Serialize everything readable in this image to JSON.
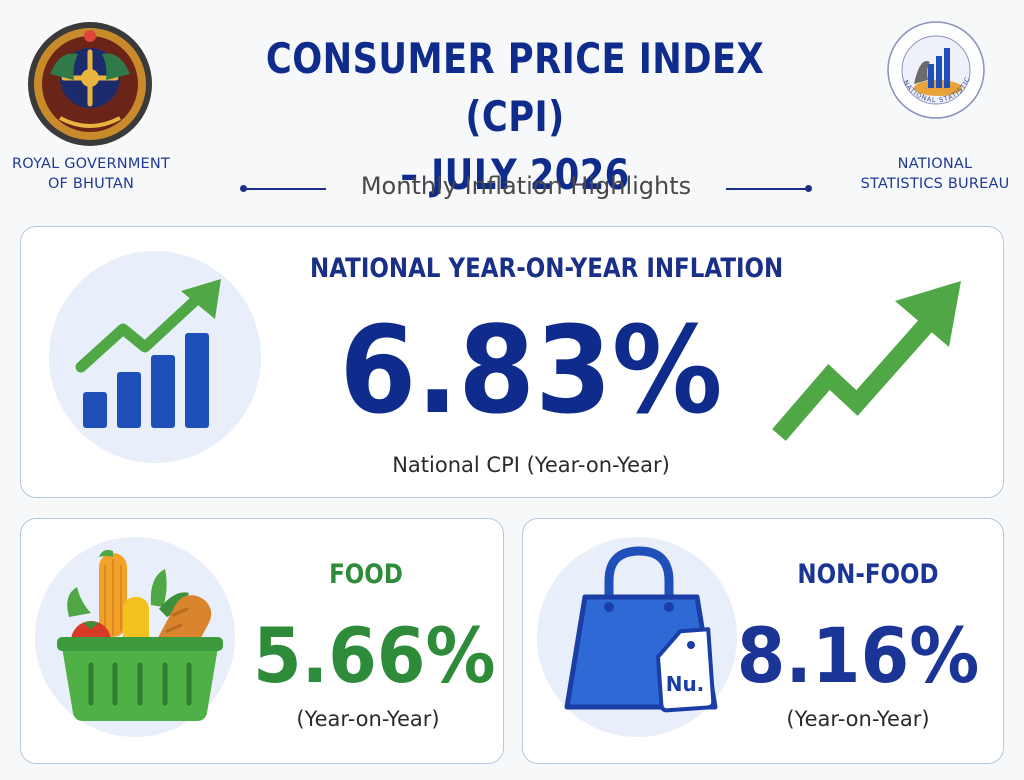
{
  "header": {
    "title_line1": "CONSUMER PRICE INDEX (CPI)",
    "title_line2": "– JULY 2026",
    "subtitle": "Monthly Inflation Highlights",
    "left_org_line1": "ROYAL GOVERNMENT",
    "left_org_line2": "OF BHUTAN",
    "right_org_line1": "NATIONAL",
    "right_org_line2": "STATISTICS BUREAU",
    "right_seal_text": "NATIONAL STATISTICS BUREAU",
    "left_emblem_icon": "royal-emblem-of-bhutan",
    "right_emblem_icon": "nsb-seal"
  },
  "national": {
    "heading": "NATIONAL YEAR-ON-YEAR INFLATION",
    "value": "6.83%",
    "caption": "National CPI (Year-on-Year)",
    "left_icon": "bar-chart-trend-up-icon",
    "right_icon": "trend-up-arrow-icon"
  },
  "food": {
    "heading": "FOOD",
    "value": "5.66%",
    "caption": "(Year-on-Year)",
    "icon": "grocery-basket-icon"
  },
  "non_food": {
    "heading": "NON-FOOD",
    "value": "8.16%",
    "caption": "(Year-on-Year)",
    "icon": "shopping-bag-icon",
    "tag_text": "Nu."
  },
  "colors": {
    "navy": "#0f2c8c",
    "green": "#2e8b3a",
    "icon_green": "#4fa845",
    "icon_blue": "#1f4fb8",
    "card_border": "#b7c6e3"
  }
}
